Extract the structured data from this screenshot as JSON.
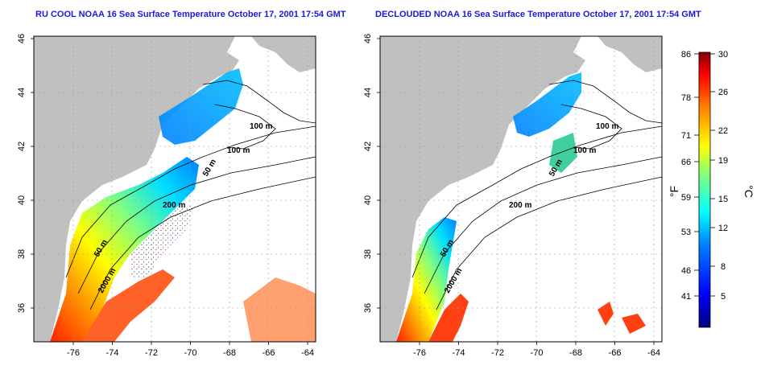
{
  "panels": [
    {
      "title": "RU COOL NOAA 16 Sea Surface Temperature October 17, 2001 17:54 GMT",
      "contours": [
        "100 m",
        "100 m",
        "50 m",
        "200 m",
        "50 m",
        "2000 m"
      ]
    },
    {
      "title": "DECLOUDED NOAA 16 Sea Surface Temperature October 17, 2001 17:54 GMT",
      "contours": [
        "100 m",
        "100 m",
        "50 m",
        "200 m",
        "50 m",
        "2000 m"
      ]
    }
  ],
  "axes": {
    "x_ticks": [
      "-76",
      "-74",
      "-72",
      "-70",
      "-68",
      "-66",
      "-64"
    ],
    "y_ticks": [
      "46",
      "44",
      "42",
      "40",
      "38",
      "36"
    ]
  },
  "colorbar": {
    "f_label": "°F",
    "c_label": "°C",
    "f_ticks": [
      "86",
      "78",
      "71",
      "66",
      "59",
      "53",
      "46",
      "41"
    ],
    "c_ticks": [
      "30",
      "26",
      "22",
      "19",
      "15",
      "12",
      "8",
      "5"
    ],
    "colors": [
      "#00007f",
      "#0000ff",
      "#0080ff",
      "#00ffff",
      "#80ff80",
      "#ffff00",
      "#ff8000",
      "#ff0000",
      "#7f0000"
    ]
  },
  "colors": {
    "land": "#c0c0c0",
    "water": "#ffffff",
    "title": "#1a1ad8"
  }
}
